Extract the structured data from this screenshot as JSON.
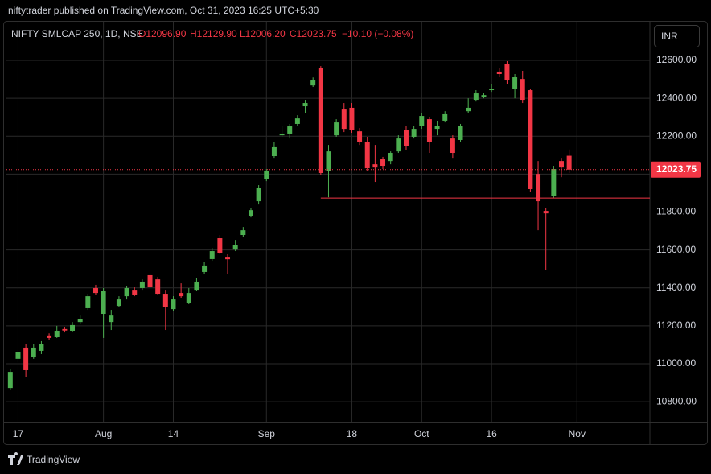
{
  "header": {
    "publisher": "niftytrader published on TradingView.com, Oct 31, 2023 16:25 UTC+5:30",
    "symbol": "NIFTY SMLCAP 250, 1D, NSE",
    "open": "O12096.90",
    "high": "H12129.90",
    "low": "L12006.20",
    "close": "C12023.75",
    "change": "−10.10 (−0.08%)",
    "currency": "INR",
    "brand": "TradingView"
  },
  "chart_data": {
    "type": "candlestick",
    "up_color": "#4caf50",
    "down_color": "#f23645",
    "grid": true,
    "xlim": [
      -0.5,
      82.4
    ],
    "xticks": [
      {
        "value": 1,
        "label": "17"
      },
      {
        "value": 12,
        "label": "Aug"
      },
      {
        "value": 21,
        "label": "14"
      },
      {
        "value": 33,
        "label": "Sep"
      },
      {
        "value": 44,
        "label": "18"
      },
      {
        "value": 53,
        "label": "Oct"
      },
      {
        "value": 62,
        "label": "16"
      },
      {
        "value": 73,
        "label": "Nov"
      }
    ],
    "ylim": [
      10690,
      12770
    ],
    "yticks": [
      {
        "value": 10800,
        "label": "10800.00"
      },
      {
        "value": 11000,
        "label": "11000.00"
      },
      {
        "value": 11200,
        "label": "11200.00"
      },
      {
        "value": 11400,
        "label": "11400.00"
      },
      {
        "value": 11600,
        "label": "11600.00"
      },
      {
        "value": 11800,
        "label": "11800.00"
      },
      {
        "value": 12000,
        "label": "12000.00"
      },
      {
        "value": 12200,
        "label": "12200.00"
      },
      {
        "value": 12400,
        "label": "12400.00"
      },
      {
        "value": 12600,
        "label": "12600.00"
      }
    ],
    "hline": {
      "value": 11874,
      "from": 40,
      "color": "#f23645"
    },
    "open": [
      10872,
      11026,
      11085,
      11038,
      11068,
      11149,
      11140,
      11183,
      11174,
      11220,
      11293,
      11399,
      11263,
      11220,
      11305,
      11356,
      11390,
      11399,
      11467,
      11445,
      11369,
      11288,
      11373,
      11322,
      11390,
      11484,
      11552,
      11662,
      11564,
      11602,
      11679,
      11781,
      11857,
      11972,
      12095,
      12205,
      12214,
      12265,
      12358,
      12468,
      12562,
      12018,
      12205,
      12341,
      12350,
      12226,
      12171,
      12052,
      12078,
      12069,
      12120,
      12231,
      12197,
      12256,
      12290,
      12239,
      12282,
      12188,
      12180,
      12332,
      12392,
      12409,
      12443,
      12541,
      12579,
      12451,
      12502,
      12443,
      12001,
      11806,
      11883,
      12069,
      12096.9
    ],
    "high": [
      10974,
      11073,
      11102,
      11102,
      11119,
      11160,
      11200,
      11195,
      11220,
      11254,
      11369,
      11416,
      11399,
      11284,
      11356,
      11411,
      11403,
      11445,
      11479,
      11458,
      11390,
      11356,
      11424,
      11399,
      11450,
      11535,
      11611,
      11679,
      11577,
      11653,
      11721,
      11823,
      11942,
      12027,
      12171,
      12256,
      12265,
      12311,
      12392,
      12510,
      12570,
      12154,
      12290,
      12375,
      12375,
      12243,
      12197,
      12154,
      12091,
      12120,
      12205,
      12256,
      12256,
      12324,
      12303,
      12282,
      12332,
      12205,
      12265,
      12400,
      12443,
      12426,
      12477,
      12562,
      12596,
      12528,
      12545,
      12451,
      12069,
      11823,
      12044,
      12086,
      12129.9
    ],
    "low": [
      10860,
      11009,
      10932,
      11026,
      11051,
      11125,
      11136,
      11165,
      11166,
      11212,
      11284,
      11365,
      11136,
      11178,
      11297,
      11339,
      11356,
      11390,
      11399,
      11365,
      11178,
      11280,
      11348,
      11314,
      11382,
      11475,
      11543,
      11577,
      11475,
      11594,
      11670,
      11772,
      11840,
      11963,
      12086,
      12197,
      12188,
      12256,
      12324,
      12460,
      11993,
      11878,
      12197,
      12222,
      12218,
      12154,
      12018,
      11959,
      12027,
      12052,
      12112,
      12129,
      12188,
      12239,
      12112,
      12205,
      12273,
      12086,
      12171,
      12324,
      12383,
      12400,
      12434,
      12511,
      12477,
      12400,
      12375,
      11908,
      11704,
      11496,
      11874,
      11984,
      12006.2
    ],
    "close": [
      10957,
      11060,
      10966,
      11085,
      11106,
      11136,
      11174,
      11175,
      11204,
      11237,
      11356,
      11373,
      11382,
      11254,
      11339,
      11399,
      11365,
      11433,
      11403,
      11369,
      11297,
      11339,
      11356,
      11373,
      11433,
      11518,
      11594,
      11585,
      11551,
      11628,
      11704,
      11810,
      11929,
      12018,
      12142,
      12214,
      12252,
      12294,
      12375,
      12494,
      12006,
      12120,
      12273,
      12239,
      12235,
      12171,
      12031,
      12035,
      12044,
      12112,
      12188,
      12146,
      12239,
      12307,
      12171,
      12256,
      12316,
      12112,
      12256,
      12350,
      12426,
      12417,
      12451,
      12528,
      12494,
      12511,
      12392,
      11921,
      11857,
      11793,
      12027,
      12035,
      12023.75
    ]
  }
}
